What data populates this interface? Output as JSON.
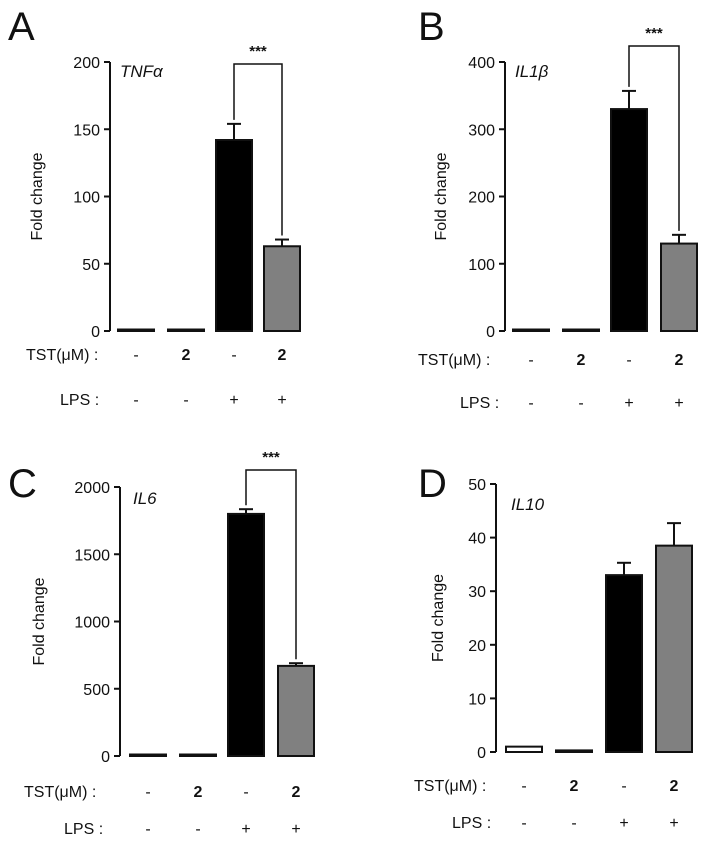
{
  "figure": {
    "panels": [
      "A",
      "B",
      "C",
      "D"
    ],
    "row_labels": {
      "treatment": "TST(μM) :",
      "lps": "LPS :"
    }
  },
  "chart_data": [
    {
      "panel": "A",
      "type": "bar",
      "label": "TNFα",
      "ylabel": "Fold change",
      "ylim": [
        0,
        200
      ],
      "yticks": [
        0,
        50,
        100,
        150,
        200
      ],
      "categories": [
        {
          "tst": "-",
          "lps": "-"
        },
        {
          "tst": "2",
          "lps": "-"
        },
        {
          "tst": "-",
          "lps": "+"
        },
        {
          "tst": "2",
          "lps": "+"
        }
      ],
      "values": [
        1,
        0.5,
        142,
        63
      ],
      "errors": [
        0.3,
        0.2,
        12,
        5
      ],
      "colors": [
        "#ffffff",
        "#ffffff",
        "#000000",
        "#808080"
      ],
      "significance": {
        "from": 2,
        "to": 3,
        "label": "***"
      }
    },
    {
      "panel": "B",
      "type": "bar",
      "label": "IL1β",
      "ylabel": "Fold change",
      "ylim": [
        0,
        400
      ],
      "yticks": [
        0,
        100,
        200,
        300,
        400
      ],
      "categories": [
        {
          "tst": "-",
          "lps": "-"
        },
        {
          "tst": "2",
          "lps": "-"
        },
        {
          "tst": "-",
          "lps": "+"
        },
        {
          "tst": "2",
          "lps": "+"
        }
      ],
      "values": [
        1,
        1,
        330,
        130
      ],
      "errors": [
        0.3,
        0.3,
        27,
        13
      ],
      "colors": [
        "#ffffff",
        "#ffffff",
        "#000000",
        "#808080"
      ],
      "significance": {
        "from": 2,
        "to": 3,
        "label": "***"
      }
    },
    {
      "panel": "C",
      "type": "bar",
      "label": "IL6",
      "ylabel": "Fold change",
      "ylim": [
        0,
        2000
      ],
      "yticks": [
        0,
        500,
        1000,
        1500,
        2000
      ],
      "categories": [
        {
          "tst": "-",
          "lps": "-"
        },
        {
          "tst": "2",
          "lps": "-"
        },
        {
          "tst": "-",
          "lps": "+"
        },
        {
          "tst": "2",
          "lps": "+"
        }
      ],
      "values": [
        1,
        1,
        1800,
        670
      ],
      "errors": [
        0.5,
        0.5,
        35,
        20
      ],
      "colors": [
        "#ffffff",
        "#ffffff",
        "#000000",
        "#808080"
      ],
      "significance": {
        "from": 2,
        "to": 3,
        "label": "***"
      }
    },
    {
      "panel": "D",
      "type": "bar",
      "label": "IL10",
      "ylabel": "Fold change",
      "ylim": [
        0,
        50
      ],
      "yticks": [
        0,
        10,
        20,
        30,
        40,
        50
      ],
      "categories": [
        {
          "tst": "-",
          "lps": "-"
        },
        {
          "tst": "2",
          "lps": "-"
        },
        {
          "tst": "-",
          "lps": "+"
        },
        {
          "tst": "2",
          "lps": "+"
        }
      ],
      "values": [
        1,
        0.3,
        33,
        38.5
      ],
      "errors": [
        0.2,
        0.1,
        2.3,
        4.2
      ],
      "colors": [
        "#ffffff",
        "#ffffff",
        "#000000",
        "#808080"
      ],
      "significance": null
    }
  ]
}
